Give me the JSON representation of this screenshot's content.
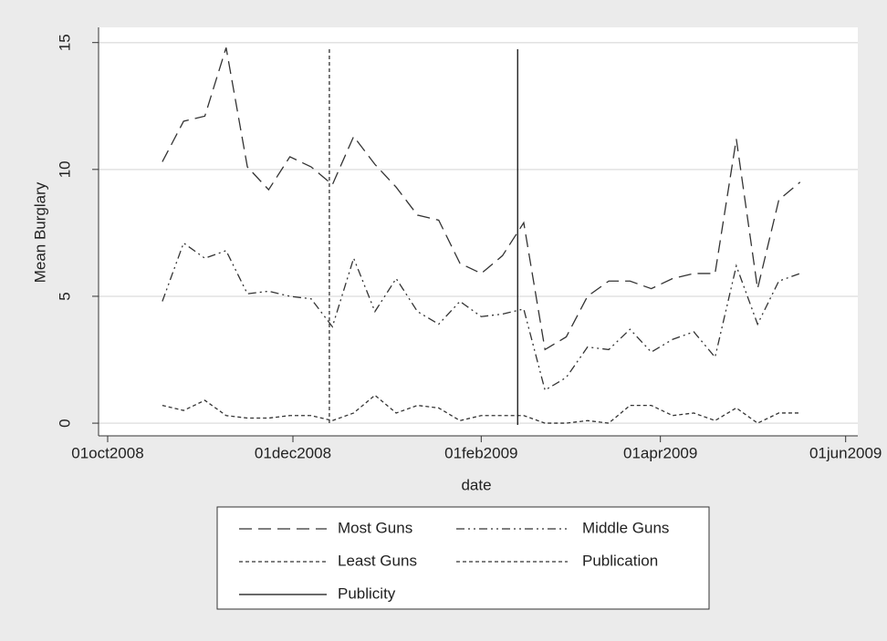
{
  "chart_data": {
    "type": "line",
    "y_label": "Mean Burglary",
    "x_label": "date",
    "x": [
      "2008-10-19",
      "2008-10-26",
      "2008-11-02",
      "2008-11-09",
      "2008-11-16",
      "2008-11-23",
      "2008-11-30",
      "2008-12-07",
      "2008-12-14",
      "2008-12-21",
      "2008-12-28",
      "2009-01-04",
      "2009-01-11",
      "2009-01-18",
      "2009-01-25",
      "2009-02-01",
      "2009-02-08",
      "2009-02-15",
      "2009-02-22",
      "2009-03-01",
      "2009-03-08",
      "2009-03-15",
      "2009-03-22",
      "2009-03-29",
      "2009-04-05",
      "2009-04-12",
      "2009-04-19",
      "2009-04-26",
      "2009-05-03",
      "2009-05-10",
      "2009-05-17"
    ],
    "series": [
      {
        "name": "Most Guns",
        "color": "#333333",
        "dash": "14,7",
        "values": [
          10.3,
          11.9,
          12.1,
          14.8,
          10.1,
          9.2,
          10.5,
          10.1,
          9.4,
          11.3,
          10.2,
          9.3,
          8.2,
          8.0,
          6.3,
          5.9,
          6.6,
          7.9,
          2.9,
          3.4,
          5.0,
          5.6,
          5.6,
          5.3,
          5.7,
          5.9,
          5.9,
          11.2,
          5.3,
          8.8,
          9.5
        ]
      },
      {
        "name": "Middle Guns",
        "color": "#333333",
        "dash": "9,4,2,4,2,4",
        "values": [
          4.8,
          7.1,
          6.5,
          6.8,
          5.1,
          5.2,
          5.0,
          4.9,
          3.8,
          6.5,
          4.4,
          5.7,
          4.4,
          3.9,
          4.8,
          4.2,
          4.3,
          4.5,
          1.3,
          1.8,
          3.0,
          2.9,
          3.7,
          2.8,
          3.3,
          3.6,
          2.6,
          6.2,
          3.9,
          5.6,
          5.9
        ]
      },
      {
        "name": "Least Guns",
        "color": "#333333",
        "dash": "4,3",
        "values": [
          0.7,
          0.5,
          0.9,
          0.3,
          0.2,
          0.2,
          0.3,
          0.3,
          0.1,
          0.4,
          1.1,
          0.4,
          0.7,
          0.6,
          0.1,
          0.3,
          0.3,
          0.3,
          0.0,
          0.0,
          0.1,
          0.0,
          0.7,
          0.7,
          0.3,
          0.4,
          0.1,
          0.6,
          0.0,
          0.4,
          0.4
        ]
      }
    ],
    "reference_lines": [
      {
        "name": "Publication",
        "x": "2008-12-13",
        "color": "#333333",
        "dash": "4,3"
      },
      {
        "name": "Publicity",
        "x": "2009-02-13",
        "color": "#111111",
        "dash": "none"
      }
    ],
    "xlim": [
      "2008-09-28",
      "2009-06-05"
    ],
    "xticks": [
      {
        "value": "2008-10-01",
        "label": "01oct2008"
      },
      {
        "value": "2008-12-01",
        "label": "01dec2008"
      },
      {
        "value": "2009-02-01",
        "label": "01feb2009"
      },
      {
        "value": "2009-04-01",
        "label": "01apr2009"
      },
      {
        "value": "2009-06-01",
        "label": "01jun2009"
      }
    ],
    "ylim": [
      -0.5,
      15.6
    ],
    "yticks": [
      0,
      5,
      10,
      15
    ],
    "grid": true,
    "legend": "bottom"
  }
}
